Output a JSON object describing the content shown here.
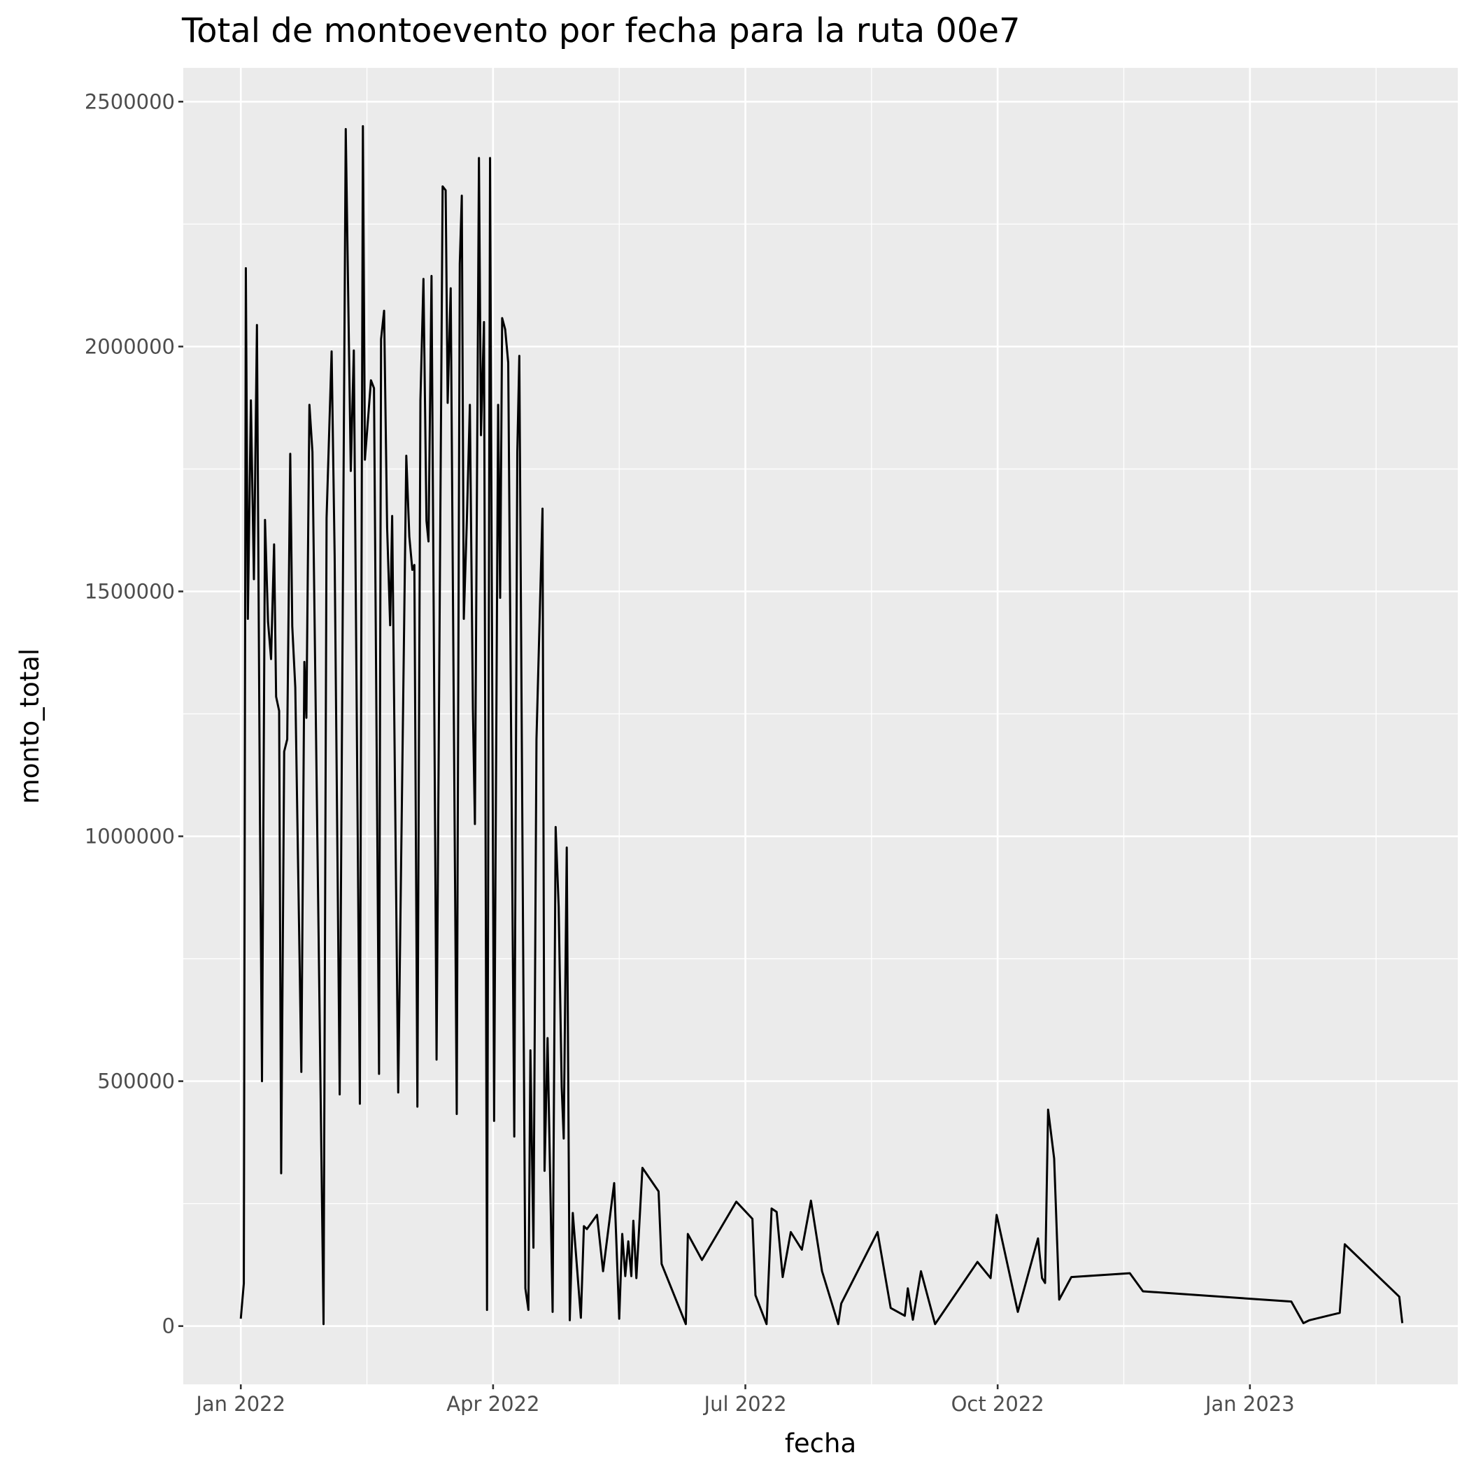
{
  "chart_data": {
    "type": "line",
    "title": "Total de montoevento por fecha para la ruta 00e7",
    "x_label": "fecha",
    "y_label": "monto_total",
    "color": "#000000",
    "grid": true,
    "xlim": [
      2021.943,
      2023.206
    ],
    "ylim": [
      -119000,
      2569000
    ],
    "xticks": [
      {
        "value": 2022.0,
        "label": "Jan 2022"
      },
      {
        "value": 2022.25,
        "label": "Apr 2022"
      },
      {
        "value": 2022.5,
        "label": "Jul 2022"
      },
      {
        "value": 2022.75,
        "label": "Oct 2022"
      },
      {
        "value": 2023.0,
        "label": "Jan 2023"
      }
    ],
    "yticks": [
      0,
      500000,
      1000000,
      1500000,
      2000000,
      2500000
    ],
    "x": [
      2022.0,
      2022.003,
      2022.005,
      2022.007,
      2022.01,
      2022.013,
      2022.016,
      2022.019,
      2022.021,
      2022.024,
      2022.027,
      2022.03,
      2022.033,
      2022.035,
      2022.038,
      2022.04,
      2022.043,
      2022.046,
      2022.049,
      2022.051,
      2022.054,
      2022.06,
      2022.063,
      2022.065,
      2022.068,
      2022.071,
      2022.082,
      2022.085,
      2022.09,
      2022.093,
      2022.098,
      2022.104,
      2022.109,
      2022.112,
      2022.118,
      2022.121,
      2022.123,
      2022.129,
      2022.132,
      2022.137,
      2022.139,
      2022.142,
      2022.145,
      2022.148,
      2022.15,
      2022.156,
      2022.164,
      2022.167,
      2022.17,
      2022.172,
      2022.175,
      2022.178,
      2022.181,
      2022.184,
      2022.186,
      2022.189,
      2022.194,
      2022.2,
      2022.203,
      2022.205,
      2022.208,
      2022.214,
      2022.217,
      2022.219,
      2022.221,
      2022.224,
      2022.227,
      2022.23,
      2022.232,
      2022.236,
      2022.238,
      2022.241,
      2022.244,
      2022.247,
      2022.251,
      2022.255,
      2022.257,
      2022.259,
      2022.262,
      2022.265,
      2022.271,
      2022.274,
      2022.276,
      2022.282,
      2022.285,
      2022.287,
      2022.29,
      2022.293,
      2022.299,
      2022.301,
      2022.304,
      2022.309,
      2022.312,
      2022.315,
      2022.318,
      2022.32,
      2022.323,
      2022.326,
      2022.329,
      2022.337,
      2022.34,
      2022.343,
      2022.353,
      2022.359,
      2022.37,
      2022.375,
      2022.378,
      2022.381,
      2022.384,
      2022.387,
      2022.389,
      2022.392,
      2022.398,
      2022.414,
      2022.417,
      2022.441,
      2022.443,
      2022.457,
      2022.491,
      2022.507,
      2022.51,
      2022.521,
      2022.526,
      2022.531,
      2022.537,
      2022.545,
      2022.556,
      2022.565,
      2022.576,
      2022.592,
      2022.595,
      2022.631,
      2022.644,
      2022.658,
      2022.661,
      2022.666,
      2022.674,
      2022.688,
      2022.73,
      2022.743,
      2022.749,
      2022.77,
      2022.79,
      2022.794,
      2022.797,
      2022.8,
      2022.806,
      2022.811,
      2022.823,
      2022.881,
      2022.894,
      2023.041,
      2023.053,
      2023.059,
      2023.089,
      2023.094,
      2023.148,
      2023.151
    ],
    "values": [
      15000,
      87000,
      2160000,
      1444000,
      1890000,
      1525000,
      2044000,
      1035000,
      500000,
      1646000,
      1438000,
      1362000,
      1596000,
      1285000,
      1256000,
      312000,
      1173000,
      1198000,
      1781000,
      1429000,
      1304000,
      519000,
      1356000,
      1242000,
      1881000,
      1785000,
      4000,
      1650000,
      1990000,
      1573000,
      473000,
      2444000,
      1746000,
      1992000,
      454000,
      2450000,
      1769000,
      1931000,
      1915000,
      515000,
      2015000,
      2073000,
      1631000,
      1431000,
      1654000,
      477000,
      1777000,
      1612000,
      1544000,
      1554000,
      448000,
      1890000,
      2138000,
      1644000,
      1602000,
      2144000,
      544000,
      2327000,
      2319000,
      1885000,
      2119000,
      433000,
      2169000,
      2308000,
      1444000,
      1644000,
      1881000,
      1260000,
      1025000,
      2385000,
      1819000,
      2050000,
      33000,
      2385000,
      419000,
      1881000,
      1487000,
      2058000,
      2035000,
      1967000,
      387000,
      1785000,
      1981000,
      77000,
      33000,
      563000,
      160000,
      1198000,
      1669000,
      317000,
      588000,
      29000,
      1019000,
      856000,
      488000,
      383000,
      977000,
      12000,
      231000,
      17000,
      204000,
      198000,
      227000,
      112000,
      292000,
      15000,
      188000,
      102000,
      173000,
      102000,
      215000,
      98000,
      323000,
      275000,
      127000,
      4000,
      188000,
      135000,
      254000,
      219000,
      63000,
      4000,
      240000,
      233000,
      100000,
      192000,
      156000,
      256000,
      112000,
      4000,
      46000,
      192000,
      37000,
      21000,
      77000,
      13000,
      112000,
      4000,
      131000,
      98000,
      227000,
      29000,
      179000,
      98000,
      88000,
      442000,
      342000,
      54000,
      100000,
      108000,
      71000,
      50000,
      6000,
      12000,
      27000,
      167000,
      60000,
      6000
    ]
  }
}
